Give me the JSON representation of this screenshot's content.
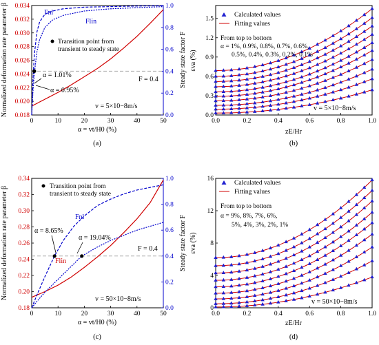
{
  "chart_data": [
    {
      "type": "line",
      "panel_label": "(a)",
      "xlabel": "α = vt/H0 (%)",
      "ylabel_left": "Normalized deformation rate parameter β",
      "ylabel_right": "Steady state factor F",
      "xlim": [
        0,
        50
      ],
      "xticks": [
        "0",
        "10",
        "20",
        "30",
        "40",
        "50"
      ],
      "ylim_left": [
        0.018,
        0.034
      ],
      "yticks_left": [
        "0.018",
        "0.020",
        "0.022",
        "0.024",
        "0.026",
        "0.028",
        "0.030",
        "0.032",
        "0.034"
      ],
      "ylim_right": [
        0,
        1.0
      ],
      "yticks_right": [
        "0.0",
        "0.2",
        "0.4",
        "0.6",
        "0.8",
        "1.0"
      ],
      "series": [
        {
          "label": "β",
          "axis": "left",
          "color": "#d00000",
          "style": "solid",
          "x": [
            0,
            2,
            5,
            10,
            15,
            20,
            25,
            30,
            35,
            40,
            45,
            50
          ],
          "y": [
            0.0193,
            0.0197,
            0.0203,
            0.0213,
            0.0224,
            0.0236,
            0.0248,
            0.0262,
            0.0278,
            0.0295,
            0.0314,
            0.0334
          ]
        },
        {
          "label": "Fnl",
          "axis": "right",
          "color": "#0000cc",
          "style": "dashed",
          "x": [
            0,
            0.5,
            1,
            2,
            3,
            5,
            8,
            12,
            20,
            30,
            40,
            50
          ],
          "y": [
            0,
            0.33,
            0.55,
            0.76,
            0.85,
            0.92,
            0.95,
            0.97,
            0.985,
            0.99,
            0.995,
            0.998
          ]
        },
        {
          "label": "Flin",
          "axis": "right",
          "color": "#0000cc",
          "style": "dotted",
          "x": [
            0,
            0.5,
            1,
            2,
            3,
            5,
            8,
            12,
            20,
            30,
            40,
            50
          ],
          "y": [
            0,
            0.22,
            0.38,
            0.58,
            0.69,
            0.8,
            0.87,
            0.91,
            0.95,
            0.97,
            0.98,
            0.99
          ]
        }
      ],
      "reference_line": {
        "axis": "right",
        "y": 0.4,
        "label": "F = 0.4"
      },
      "transition_points": [
        {
          "x": 1.01,
          "label": "α = 1.01%"
        },
        {
          "x": 0.95,
          "label": "α = 0.95%"
        }
      ],
      "legend_text": [
        "Transition point from",
        "transient to steady state"
      ],
      "curve_labels": [
        "Fnl",
        "Flin"
      ],
      "velocity_label": "v = 5×10−8m/s"
    },
    {
      "type": "scatter",
      "panel_label": "(b)",
      "xlabel": "zE/Hr",
      "ylabel": "εva (%)",
      "xlim": [
        0,
        1.0
      ],
      "xticks": [
        "0.0",
        "0.2",
        "0.4",
        "0.6",
        "0.8",
        "1.0"
      ],
      "ylim": [
        0,
        1.7
      ],
      "yticks": [
        "0.0",
        "0.3",
        "0.6",
        "0.9",
        "1.2",
        "1.5"
      ],
      "legend": [
        "Calculated values",
        "Fitting values"
      ],
      "note": [
        "From top to bottom",
        "α = 1%, 0.9%, 0.8%, 0.7%, 0.6%,",
        "0.5%, 0.4%, 0.3%, 0.2%, 0.1%"
      ],
      "velocity_label": "v = 5×10−8m/s",
      "model": {
        "alpha": [
          1.0,
          0.9,
          0.8,
          0.7,
          0.6,
          0.5,
          0.4,
          0.3,
          0.2,
          0.1
        ],
        "intercept": [
          0.69,
          0.6,
          0.52,
          0.44,
          0.36,
          0.29,
          0.22,
          0.15,
          0.09,
          0.03
        ],
        "rise": [
          0.96,
          0.91,
          0.86,
          0.81,
          0.76,
          0.71,
          0.64,
          0.56,
          0.47,
          0.36
        ],
        "exponent": 2.0,
        "points_x": [
          0,
          0.05,
          0.1,
          0.15,
          0.2,
          0.25,
          0.3,
          0.35,
          0.4,
          0.45,
          0.5,
          0.55,
          0.6,
          0.65,
          0.7,
          0.75,
          0.8,
          0.85,
          0.9,
          0.95,
          1.0
        ]
      }
    },
    {
      "type": "line",
      "panel_label": "(c)",
      "xlabel": "α = vt/H0 (%)",
      "ylabel_left": "Normalized deformation rate parameter β",
      "ylabel_right": "Steady state factor F",
      "xlim": [
        0,
        50
      ],
      "xticks": [
        "0",
        "10",
        "20",
        "30",
        "40",
        "50"
      ],
      "ylim_left": [
        0.18,
        0.34
      ],
      "yticks_left": [
        "0.18",
        "0.20",
        "0.22",
        "0.24",
        "0.26",
        "0.28",
        "0.30",
        "0.32",
        "0.34"
      ],
      "ylim_right": [
        0,
        1.0
      ],
      "yticks_right": [
        "0.0",
        "0.2",
        "0.4",
        "0.6",
        "0.8",
        "1.0"
      ],
      "series": [
        {
          "label": "β",
          "axis": "left",
          "color": "#d00000",
          "style": "solid",
          "x": [
            0,
            5,
            10,
            15,
            20,
            25,
            30,
            35,
            40,
            45,
            50
          ],
          "y": [
            0.193,
            0.2,
            0.208,
            0.218,
            0.23,
            0.243,
            0.257,
            0.273,
            0.29,
            0.31,
            0.338
          ]
        },
        {
          "label": "Fnl",
          "axis": "right",
          "color": "#0000cc",
          "style": "dashed",
          "x": [
            0,
            2,
            5,
            8.65,
            12,
            16,
            20,
            25,
            30,
            35,
            40,
            45,
            50
          ],
          "y": [
            0,
            0.1,
            0.24,
            0.4,
            0.52,
            0.63,
            0.71,
            0.79,
            0.84,
            0.88,
            0.91,
            0.93,
            0.95
          ]
        },
        {
          "label": "Flin",
          "axis": "right",
          "color": "#0000cc",
          "style": "dotted",
          "x": [
            0,
            2,
            5,
            10,
            15,
            19.04,
            25,
            30,
            35,
            40,
            45,
            50
          ],
          "y": [
            0,
            0.05,
            0.12,
            0.22,
            0.32,
            0.4,
            0.47,
            0.52,
            0.56,
            0.6,
            0.63,
            0.66
          ]
        }
      ],
      "reference_line": {
        "axis": "right",
        "y": 0.4,
        "label": "F = 0.4"
      },
      "transition_points": [
        {
          "x": 8.65,
          "label": "α = 8.65%"
        },
        {
          "x": 19.04,
          "label": "α = 19.04%"
        }
      ],
      "legend_text": [
        "Transition point from",
        "transient to steady state"
      ],
      "curve_labels": [
        "Fnl",
        "Flin"
      ],
      "velocity_label": "v = 50×10−8m/s"
    },
    {
      "type": "scatter",
      "panel_label": "(d)",
      "xlabel": "zE/Hr",
      "ylabel": "εva (%)",
      "xlim": [
        0,
        1.0
      ],
      "xticks": [
        "0.0",
        "0.2",
        "0.4",
        "0.6",
        "0.8",
        "1.0"
      ],
      "ylim": [
        0,
        16
      ],
      "yticks": [
        "0",
        "4",
        "8",
        "12",
        "16"
      ],
      "legend": [
        "Calculated values",
        "Fitting values"
      ],
      "note": [
        "From top to bottom",
        "α = 9%, 8%, 7%, 6%,",
        "5%, 4%, 3%, 2%, 1%"
      ],
      "velocity_label": "v = 50×10−8m/s",
      "model": {
        "alpha": [
          9,
          8,
          7,
          6,
          5,
          4,
          3,
          2,
          1
        ],
        "intercept": [
          6.2,
          5.2,
          4.3,
          3.4,
          2.6,
          1.8,
          1.1,
          0.5,
          0.1
        ],
        "rise": [
          9.6,
          9.3,
          8.9,
          8.4,
          7.9,
          7.3,
          6.4,
          5.3,
          3.7
        ],
        "exponent": 2.0,
        "points_x": [
          0,
          0.05,
          0.1,
          0.15,
          0.2,
          0.25,
          0.3,
          0.35,
          0.4,
          0.45,
          0.5,
          0.55,
          0.6,
          0.65,
          0.7,
          0.75,
          0.8,
          0.85,
          0.9,
          0.95,
          1.0
        ]
      }
    }
  ]
}
